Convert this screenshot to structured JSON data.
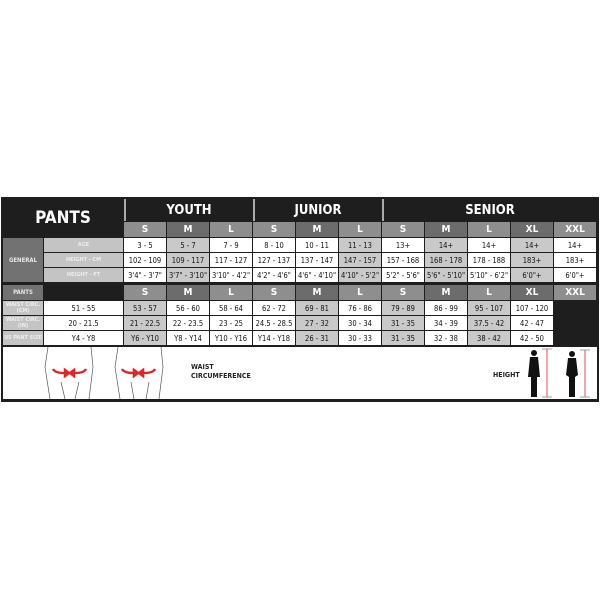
{
  "title": "PANTS",
  "groups": [
    "YOUTH",
    "JUNIOR",
    "SENIOR"
  ],
  "sizes": [
    "S",
    "M",
    "L",
    "S",
    "M",
    "L",
    "S",
    "M",
    "L",
    "XL",
    "XXL"
  ],
  "general": {
    "label": "GENERAL",
    "rows": [
      {
        "label": "AGE",
        "values": [
          "3 - 5",
          "5 - 7",
          "7 - 9",
          "8 - 10",
          "10 - 11",
          "11 - 13",
          "13+",
          "14+",
          "14+",
          "14+",
          "14+"
        ]
      },
      {
        "label": "HEIGHT - CM",
        "values": [
          "102 - 109",
          "109 - 117",
          "117 - 127",
          "127 - 137",
          "137 - 147",
          "147 - 157",
          "157 - 168",
          "168 - 178",
          "178 - 188",
          "183+",
          "183+"
        ]
      },
      {
        "label": "HEIGHT - FT",
        "values": [
          "3'4\" - 3'7\"",
          "3'7\" - 3'10\"",
          "3'10\" - 4'2\"",
          "4'2\" - 4'6\"",
          "4'6\" - 4'10\"",
          "4'10\" - 5'2\"",
          "5'2\" - 5'6\"",
          "5'6\" - 5'10\"",
          "5'10\" - 6'2\"",
          "6'0\"+",
          "6'0\"+"
        ]
      }
    ]
  },
  "pants": {
    "label": "PANTS",
    "rows": [
      {
        "label": "WAIST CIRC. (CM)",
        "values": [
          "51 - 55",
          "53 - 57",
          "56 - 60",
          "58 - 64",
          "62 - 72",
          "69 - 81",
          "76 - 86",
          "79 - 89",
          "86 - 99",
          "95 - 107",
          "107 - 120"
        ]
      },
      {
        "label": "WAIST CIRC. (IN)",
        "values": [
          "20 - 21.5",
          "21 - 22.5",
          "22 - 23.5",
          "23 - 25",
          "24.5 - 28.5",
          "27 - 32",
          "30 - 34",
          "31 - 35",
          "34 - 39",
          "37.5 - 42",
          "42 - 47"
        ]
      },
      {
        "label": "US PANT SIZE",
        "values": [
          "Y4 - Y8",
          "Y6 - Y10",
          "Y8 - Y14",
          "Y10 - Y16",
          "Y14 - Y18",
          "26 - 31",
          "30 - 33",
          "31 - 35",
          "32 - 38",
          "38 - 42",
          "42 - 50"
        ]
      }
    ]
  },
  "legend": {
    "waist": "WAIST CIRCUMFERENCE",
    "height": "HEIGHT"
  },
  "colors": {
    "arrow": "#e0262b",
    "dark": "#1e1e1e"
  }
}
